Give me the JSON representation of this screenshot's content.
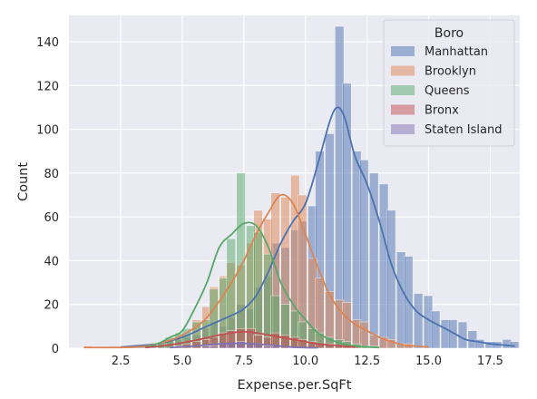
{
  "chart_data": {
    "type": "histogram",
    "xlabel": "Expense.per.SqFt",
    "ylabel": "Count",
    "xlim": [
      0.4,
      18.7
    ],
    "ylim": [
      0,
      152
    ],
    "xticks": [
      "2.5",
      "5.0",
      "7.5",
      "10.0",
      "12.5",
      "15.0",
      "17.5"
    ],
    "yticks": [
      "0",
      "20",
      "40",
      "60",
      "80",
      "100",
      "120",
      "140"
    ],
    "grid": true,
    "background_color": "#eaeaf2",
    "bin_width": 0.36,
    "legend": {
      "title": "Boro",
      "placement": "upper right"
    },
    "series": [
      {
        "name": "Manhattan",
        "color": "#4c72b0",
        "bins": [
          [
            2.5,
            1
          ],
          [
            2.9,
            1
          ],
          [
            3.2,
            1
          ],
          [
            3.6,
            2
          ],
          [
            4.0,
            2
          ],
          [
            4.3,
            3
          ],
          [
            4.7,
            4
          ],
          [
            5.0,
            6
          ],
          [
            5.4,
            6
          ],
          [
            5.8,
            9
          ],
          [
            6.1,
            12
          ],
          [
            6.5,
            10
          ],
          [
            6.8,
            14
          ],
          [
            7.2,
            20
          ],
          [
            7.6,
            18
          ],
          [
            7.9,
            28
          ],
          [
            8.3,
            33
          ],
          [
            8.6,
            48
          ],
          [
            9.0,
            46
          ],
          [
            9.4,
            54
          ],
          [
            9.7,
            58
          ],
          [
            10.1,
            65
          ],
          [
            10.4,
            90
          ],
          [
            10.8,
            98
          ],
          [
            11.2,
            147
          ],
          [
            11.5,
            121
          ],
          [
            11.9,
            90
          ],
          [
            12.2,
            86
          ],
          [
            12.6,
            80
          ],
          [
            13.0,
            75
          ],
          [
            13.3,
            63
          ],
          [
            13.7,
            44
          ],
          [
            14.0,
            42
          ],
          [
            14.4,
            25
          ],
          [
            14.8,
            24
          ],
          [
            15.1,
            17
          ],
          [
            15.5,
            13
          ],
          [
            15.8,
            13
          ],
          [
            16.2,
            12
          ],
          [
            16.6,
            8
          ],
          [
            16.9,
            4
          ],
          [
            17.3,
            3
          ],
          [
            17.6,
            3
          ],
          [
            18.0,
            4
          ],
          [
            18.3,
            3
          ]
        ],
        "kde": [
          [
            2.5,
            0.5
          ],
          [
            3.0,
            1
          ],
          [
            4.0,
            2
          ],
          [
            5.0,
            5
          ],
          [
            6.0,
            10
          ],
          [
            7.0,
            15
          ],
          [
            7.5,
            18
          ],
          [
            8.0,
            24
          ],
          [
            8.5,
            35
          ],
          [
            9.0,
            48
          ],
          [
            9.5,
            58
          ],
          [
            10.0,
            66
          ],
          [
            10.5,
            84
          ],
          [
            11.0,
            104
          ],
          [
            11.3,
            110
          ],
          [
            11.6,
            105
          ],
          [
            12.0,
            88
          ],
          [
            12.5,
            75
          ],
          [
            13.0,
            58
          ],
          [
            13.5,
            38
          ],
          [
            14.0,
            25
          ],
          [
            14.5,
            17
          ],
          [
            15.0,
            13
          ],
          [
            15.5,
            10
          ],
          [
            16.0,
            7
          ],
          [
            16.5,
            4
          ],
          [
            17.0,
            3
          ],
          [
            17.5,
            2
          ],
          [
            18.0,
            1.5
          ],
          [
            18.5,
            1
          ]
        ]
      },
      {
        "name": "Brooklyn",
        "color": "#dd8452",
        "bins": [
          [
            1.0,
            1
          ],
          [
            4.0,
            2
          ],
          [
            4.3,
            4
          ],
          [
            4.7,
            5
          ],
          [
            5.0,
            5
          ],
          [
            5.4,
            13
          ],
          [
            5.8,
            19
          ],
          [
            6.1,
            28
          ],
          [
            6.5,
            33
          ],
          [
            6.8,
            39
          ],
          [
            7.2,
            38
          ],
          [
            7.6,
            48
          ],
          [
            7.9,
            63
          ],
          [
            8.3,
            59
          ],
          [
            8.6,
            71
          ],
          [
            9.0,
            69
          ],
          [
            9.4,
            79
          ],
          [
            9.7,
            70
          ],
          [
            10.1,
            41
          ],
          [
            10.4,
            32
          ],
          [
            10.8,
            26
          ],
          [
            11.2,
            22
          ],
          [
            11.5,
            21
          ],
          [
            11.9,
            13
          ],
          [
            12.2,
            12
          ],
          [
            12.6,
            6
          ],
          [
            13.0,
            5
          ],
          [
            13.3,
            4
          ],
          [
            13.7,
            2
          ],
          [
            14.0,
            2
          ]
        ],
        "kde": [
          [
            1.0,
            0.3
          ],
          [
            3.0,
            0.5
          ],
          [
            4.0,
            2
          ],
          [
            5.0,
            6
          ],
          [
            6.0,
            14
          ],
          [
            7.0,
            30
          ],
          [
            7.5,
            40
          ],
          [
            8.0,
            52
          ],
          [
            8.5,
            62
          ],
          [
            9.0,
            70
          ],
          [
            9.5,
            66
          ],
          [
            10.0,
            52
          ],
          [
            10.5,
            37
          ],
          [
            11.0,
            24
          ],
          [
            11.5,
            16
          ],
          [
            12.0,
            11
          ],
          [
            12.5,
            8
          ],
          [
            13.0,
            5
          ],
          [
            13.5,
            3
          ],
          [
            14.0,
            1.5
          ],
          [
            15.0,
            0.5
          ]
        ]
      },
      {
        "name": "Queens",
        "color": "#55a868",
        "bins": [
          [
            4.0,
            3
          ],
          [
            4.3,
            5
          ],
          [
            4.7,
            7
          ],
          [
            5.0,
            9
          ],
          [
            5.4,
            12
          ],
          [
            5.8,
            13
          ],
          [
            6.1,
            27
          ],
          [
            6.5,
            32
          ],
          [
            6.8,
            50
          ],
          [
            7.2,
            80
          ],
          [
            7.6,
            56
          ],
          [
            7.9,
            53
          ],
          [
            8.3,
            43
          ],
          [
            8.6,
            24
          ],
          [
            9.0,
            20
          ],
          [
            9.4,
            17
          ],
          [
            9.7,
            12
          ],
          [
            10.1,
            9
          ],
          [
            10.4,
            7
          ],
          [
            10.8,
            5
          ],
          [
            11.2,
            4
          ],
          [
            11.5,
            3
          ],
          [
            11.9,
            2
          ],
          [
            12.2,
            1
          ],
          [
            12.6,
            1
          ]
        ],
        "kde": [
          [
            3.5,
            0.5
          ],
          [
            4.0,
            2
          ],
          [
            4.5,
            5
          ],
          [
            5.0,
            8
          ],
          [
            5.5,
            18
          ],
          [
            6.0,
            30
          ],
          [
            6.5,
            46
          ],
          [
            7.0,
            52
          ],
          [
            7.5,
            57
          ],
          [
            8.0,
            56
          ],
          [
            8.5,
            46
          ],
          [
            9.0,
            30
          ],
          [
            9.5,
            20
          ],
          [
            10.0,
            13
          ],
          [
            10.5,
            7
          ],
          [
            11.0,
            4
          ],
          [
            11.5,
            2
          ],
          [
            12.0,
            1
          ],
          [
            13.0,
            0.3
          ]
        ]
      },
      {
        "name": "Bronx",
        "color": "#c44e52",
        "bins": [
          [
            4.7,
            1
          ],
          [
            5.0,
            2
          ],
          [
            5.4,
            3
          ],
          [
            5.8,
            4
          ],
          [
            6.1,
            5
          ],
          [
            6.5,
            7
          ],
          [
            6.8,
            8
          ],
          [
            7.2,
            9
          ],
          [
            7.6,
            9
          ],
          [
            7.9,
            6
          ],
          [
            8.3,
            5
          ],
          [
            8.6,
            7
          ],
          [
            9.0,
            6
          ],
          [
            9.4,
            5
          ],
          [
            9.7,
            4
          ],
          [
            10.1,
            3
          ],
          [
            10.4,
            2
          ],
          [
            10.8,
            2
          ],
          [
            11.2,
            1
          ],
          [
            11.5,
            1
          ],
          [
            11.9,
            1
          ]
        ],
        "kde": [
          [
            3.5,
            0.3
          ],
          [
            4.5,
            1.5
          ],
          [
            5.5,
            3.5
          ],
          [
            6.5,
            6
          ],
          [
            7.0,
            7
          ],
          [
            7.5,
            7.5
          ],
          [
            8.0,
            7
          ],
          [
            8.5,
            6
          ],
          [
            9.0,
            5
          ],
          [
            9.5,
            4
          ],
          [
            10.0,
            3
          ],
          [
            10.5,
            2
          ],
          [
            11.0,
            1.5
          ],
          [
            12.0,
            0.5
          ]
        ]
      },
      {
        "name": "Staten Island",
        "color": "#8172b3",
        "bins": [
          [
            5.8,
            1
          ],
          [
            6.1,
            1
          ],
          [
            6.5,
            2
          ],
          [
            6.8,
            2
          ],
          [
            7.2,
            3
          ],
          [
            7.6,
            2
          ],
          [
            7.9,
            2
          ],
          [
            8.3,
            1
          ],
          [
            8.6,
            1
          ]
        ],
        "kde": [
          [
            4.5,
            0.3
          ],
          [
            5.5,
            1
          ],
          [
            6.5,
            2
          ],
          [
            7.5,
            2.2
          ],
          [
            8.5,
            1.5
          ],
          [
            9.5,
            0.5
          ],
          [
            10.5,
            0.2
          ]
        ]
      }
    ]
  }
}
